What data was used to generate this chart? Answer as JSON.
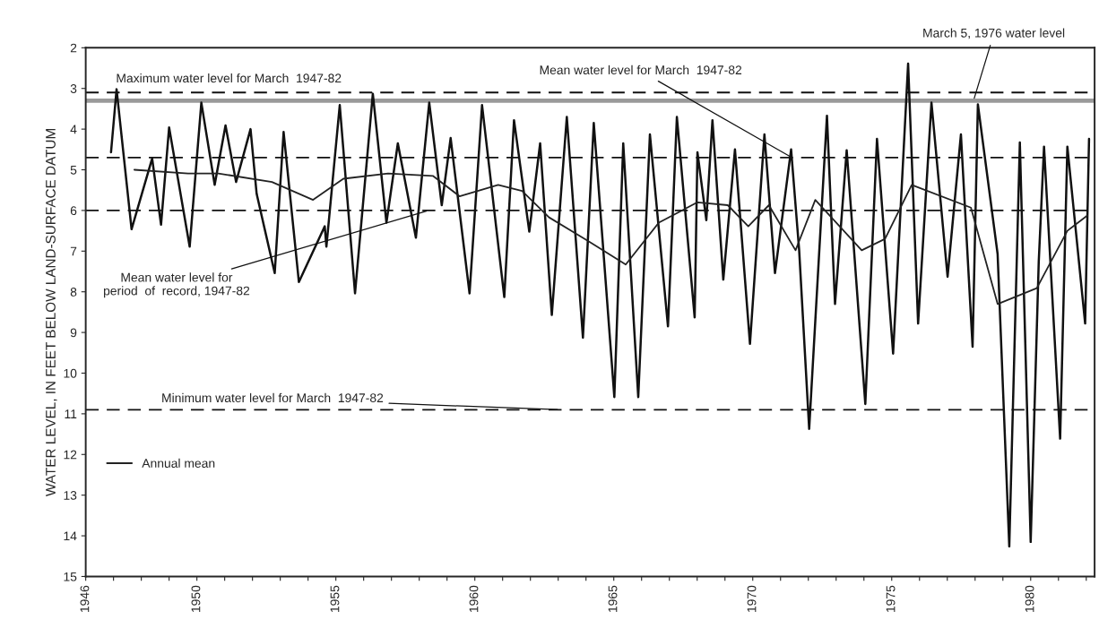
{
  "chart_data": {
    "type": "line",
    "ylabel": "WATER LEVEL, IN FEET BELOW LAND-SURFACE DATUM",
    "xlim": [
      1946,
      1982.3
    ],
    "ylim": [
      15,
      2
    ],
    "xticks": [
      {
        "value": 1946,
        "label": "1946"
      },
      {
        "value": 1947,
        "label": null
      },
      {
        "value": 1948,
        "label": null
      },
      {
        "value": 1949,
        "label": null
      },
      {
        "value": 1950,
        "label": "1950"
      },
      {
        "value": 1951,
        "label": null
      },
      {
        "value": 1952,
        "label": null
      },
      {
        "value": 1953,
        "label": null
      },
      {
        "value": 1954,
        "label": null
      },
      {
        "value": 1955,
        "label": "1955"
      },
      {
        "value": 1956,
        "label": null
      },
      {
        "value": 1957,
        "label": null
      },
      {
        "value": 1958,
        "label": null
      },
      {
        "value": 1959,
        "label": null
      },
      {
        "value": 1960,
        "label": "1960"
      },
      {
        "value": 1961,
        "label": null
      },
      {
        "value": 1962,
        "label": null
      },
      {
        "value": 1963,
        "label": null
      },
      {
        "value": 1964,
        "label": null
      },
      {
        "value": 1965,
        "label": "1965"
      },
      {
        "value": 1966,
        "label": null
      },
      {
        "value": 1967,
        "label": null
      },
      {
        "value": 1968,
        "label": null
      },
      {
        "value": 1969,
        "label": null
      },
      {
        "value": 1970,
        "label": "1970"
      },
      {
        "value": 1971,
        "label": null
      },
      {
        "value": 1972,
        "label": null
      },
      {
        "value": 1973,
        "label": null
      },
      {
        "value": 1974,
        "label": null
      },
      {
        "value": 1975,
        "label": "1975"
      },
      {
        "value": 1976,
        "label": null
      },
      {
        "value": 1977,
        "label": null
      },
      {
        "value": 1978,
        "label": null
      },
      {
        "value": 1979,
        "label": null
      },
      {
        "value": 1980,
        "label": "1980"
      },
      {
        "value": 1981,
        "label": null
      },
      {
        "value": 1982,
        "label": null
      }
    ],
    "yticks": [
      2,
      3,
      4,
      5,
      6,
      7,
      8,
      9,
      10,
      11,
      12,
      13,
      14,
      15
    ],
    "grid": false,
    "legend": "bottom left",
    "series": [
      {
        "color": "#111111",
        "x": [
          1946.91,
          1947.11,
          1947.65,
          1948.39,
          1948.71,
          1949.0,
          1949.74,
          1950.16,
          1950.64,
          1951.03,
          1951.41,
          1951.93,
          1952.15,
          1952.8,
          1953.12,
          1953.67,
          1954.6,
          1954.66,
          1955.14,
          1955.69,
          1956.33,
          1956.82,
          1957.23,
          1957.88,
          1958.36,
          1958.81,
          1959.13,
          1959.81,
          1960.26,
          1961.06,
          1961.41,
          1961.96,
          1962.35,
          1962.77,
          1963.31,
          1963.89,
          1964.28,
          1965.02,
          1965.34,
          1965.88,
          1966.3,
          1966.95,
          1967.27,
          1967.91,
          1968.01,
          1968.33,
          1968.55,
          1968.94,
          1969.36,
          1969.9,
          1970.42,
          1970.8,
          1971.38,
          1971.67,
          1972.03,
          1972.67,
          1972.96,
          1973.38,
          1974.05,
          1974.47,
          1975.05,
          1975.59,
          1975.95,
          1976.43,
          1977.01,
          1977.49,
          1977.91,
          1978.1,
          1978.81,
          1979.23,
          1979.61,
          1980.0,
          1980.29,
          1980.48,
          1981.06,
          1981.32,
          1981.96,
          1982.1
        ],
        "values": [
          4.57,
          3.02,
          6.46,
          4.72,
          6.35,
          3.96,
          6.89,
          3.35,
          5.37,
          3.91,
          5.3,
          4.0,
          5.59,
          7.54,
          4.07,
          7.76,
          6.39,
          6.89,
          3.41,
          8.04,
          3.13,
          6.3,
          4.35,
          6.67,
          3.35,
          5.87,
          4.22,
          8.04,
          3.41,
          8.13,
          3.78,
          6.52,
          4.35,
          8.57,
          3.7,
          9.13,
          3.85,
          10.59,
          4.35,
          10.59,
          4.13,
          8.85,
          3.7,
          8.63,
          4.57,
          6.24,
          3.78,
          7.7,
          4.5,
          9.28,
          4.13,
          7.54,
          4.5,
          6.98,
          11.37,
          3.67,
          8.3,
          4.52,
          10.76,
          4.24,
          9.52,
          2.39,
          8.78,
          3.35,
          7.63,
          4.13,
          9.35,
          3.39,
          7.07,
          14.26,
          4.33,
          14.15,
          7.26,
          4.43,
          11.61,
          4.43,
          8.78,
          4.24
        ]
      },
      {
        "name": "Annual mean",
        "color": "#222222",
        "x": [
          1947.75,
          1949.68,
          1950.77,
          1952.7,
          1954.18,
          1955.27,
          1956.88,
          1958.49,
          1959.45,
          1960.84,
          1961.7,
          1962.67,
          1964.05,
          1965.43,
          1966.62,
          1968.01,
          1969.1,
          1969.84,
          1970.58,
          1971.54,
          1972.25,
          1973.92,
          1974.76,
          1975.72,
          1977.85,
          1978.81,
          1980.22,
          1981.32,
          1982.03
        ],
        "values": [
          5.0,
          5.09,
          5.09,
          5.3,
          5.74,
          5.22,
          5.09,
          5.15,
          5.65,
          5.37,
          5.52,
          6.17,
          6.74,
          7.33,
          6.3,
          5.8,
          5.87,
          6.39,
          5.87,
          6.98,
          5.74,
          6.98,
          6.7,
          5.37,
          5.93,
          8.3,
          7.91,
          6.5,
          6.13
        ]
      }
    ],
    "ref_lines": [
      {
        "axis": "y",
        "value": 3.1,
        "label": "Maximum water level for March  1947-82",
        "line_style": "dashed",
        "color": "#111111"
      },
      {
        "axis": "y",
        "value": 3.3,
        "label": "March 5, 1976 water level",
        "line_style": "solid",
        "color": "#9a9a9a"
      },
      {
        "axis": "y",
        "value": 4.7,
        "label": "Mean water level for March  1947-82",
        "line_style": "dashed",
        "color": "#111111"
      },
      {
        "axis": "y",
        "value": 6.0,
        "label": "Mean water level for\nperiod  of  record, 1947-82",
        "line_style": "dashed",
        "color": "#111111"
      },
      {
        "axis": "y",
        "value": 10.9,
        "label": "Minimum water level for March  1947-82",
        "line_style": "dashed",
        "color": "#111111"
      }
    ]
  }
}
